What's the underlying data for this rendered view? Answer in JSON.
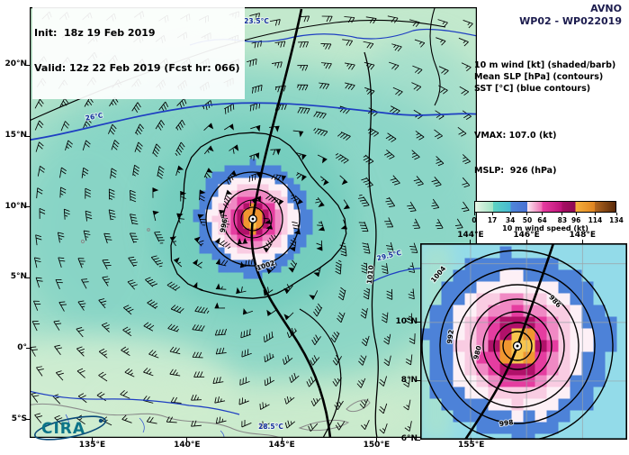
{
  "header": {
    "init_line": "Init:  18z 19 Feb 2019",
    "valid_line": "Valid: 12z 22 Feb 2019 (Fcst hr: 066)",
    "model": "AVNO",
    "storm_id": "WP02 - WP022019"
  },
  "legend": {
    "line1": "10 m wind [kt] (shaded/barb)",
    "line2": "Mean SLP [hPa] (contours)",
    "line3": "SST [°C] (blue contours)",
    "vmax": "VMAX: 107.0 (kt)",
    "mslp": "MSLP:  926 (hPa)"
  },
  "branding": {
    "logo": "CIRA"
  },
  "chart_data": {
    "type": "heatmap",
    "title": "AVNO WP02 - WP022019 10 m wind / mean SLP / SST forecast map",
    "model": "AVNO",
    "storm_id": "WP02 - WP022019",
    "init": "18z 19 Feb 2019",
    "valid": "12z 22 Feb 2019",
    "forecast_hour": 66,
    "vmax_kt": 107.0,
    "mslp_hpa": 926,
    "palette": {
      "map_bg": "#c3e9cd",
      "wind_teal": "#7fd2c4",
      "inset_bg": "#93dbe9",
      "sst_blue": "#1e3ec2",
      "contour": "#000000"
    },
    "storm_ring_colors": [
      "#f7c54e",
      "#f09630",
      "#b01169",
      "#e53da0",
      "#f089c4",
      "#f9cce2",
      "#fdf0f6",
      "#4d82d8"
    ],
    "main_map": {
      "x_ticks": [
        {
          "label": "135°E",
          "lon": 135
        },
        {
          "label": "140°E",
          "lon": 140
        },
        {
          "label": "145°E",
          "lon": 145
        },
        {
          "label": "150°E",
          "lon": 150
        },
        {
          "label": "155°E",
          "lon": 155
        }
      ],
      "y_ticks": [
        {
          "label": "20°N",
          "lat": 20
        },
        {
          "label": "15°N",
          "lat": 15
        },
        {
          "label": "10°N",
          "lat": 10
        },
        {
          "label": "5°N",
          "lat": 5
        },
        {
          "label": "0°",
          "lat": 0
        },
        {
          "label": "5°S",
          "lat": -5
        }
      ],
      "lon_range": [
        131.7,
        155.3
      ],
      "lat_range": [
        -6.3,
        24.1
      ],
      "storm_center_approx": {
        "lon": 144.3,
        "lat": 9.1
      },
      "slp_labels": [
        "996",
        "1002",
        "1010"
      ],
      "sst_labels": [
        "23.5°C",
        "26°C",
        "28.5°C",
        "29.5°C"
      ]
    },
    "inset_map": {
      "x_ticks": [
        {
          "label": "144°E",
          "lon": 144
        },
        {
          "label": "146°E",
          "lon": 146
        },
        {
          "label": "148°E",
          "lon": 148
        }
      ],
      "y_ticks": [
        {
          "label": "10°N",
          "lat": 10
        },
        {
          "label": "8°N",
          "lat": 8
        },
        {
          "label": "6°N",
          "lat": 6
        }
      ],
      "lon_range": [
        142.2,
        149.6
      ],
      "lat_range": [
        6.0,
        12.7
      ],
      "slp_labels": [
        "980",
        "986",
        "992",
        "998",
        "1004"
      ]
    },
    "colorbar": {
      "label": "10 m wind speed (kt)",
      "ticks": [
        "0",
        "17",
        "34",
        "50",
        "64",
        "83",
        "96",
        "114",
        "134"
      ],
      "tick_values": [
        0,
        17,
        34,
        50,
        64,
        83,
        96,
        114,
        134
      ],
      "max": 134,
      "segments": [
        {
          "from": 0,
          "to": 17,
          "c": [
            "#e8f6e6",
            "#a2e4c6"
          ]
        },
        {
          "from": 17,
          "to": 34,
          "c": [
            "#5dd3c2",
            "#46b9d2"
          ]
        },
        {
          "from": 34,
          "to": 50,
          "c": [
            "#4e86d9",
            "#4a70d2"
          ]
        },
        {
          "from": 50,
          "to": 64,
          "c": [
            "#fbe7f0",
            "#ee6cb2"
          ]
        },
        {
          "from": 64,
          "to": 83,
          "c": [
            "#e73da2",
            "#bc1277"
          ]
        },
        {
          "from": 83,
          "to": 96,
          "c": [
            "#a60e64",
            "#8d0a52"
          ]
        },
        {
          "from": 96,
          "to": 114,
          "c": [
            "#f6b13c",
            "#df8421"
          ]
        },
        {
          "from": 114,
          "to": 134,
          "c": [
            "#b4681f",
            "#59290a"
          ]
        }
      ]
    }
  }
}
